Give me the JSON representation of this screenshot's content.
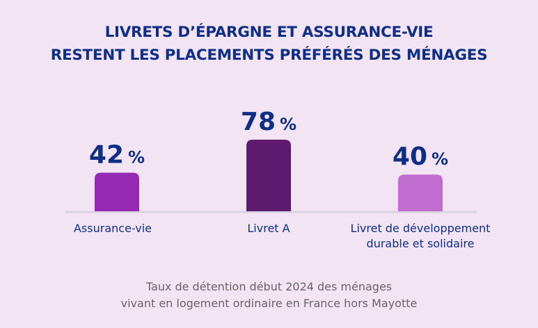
{
  "chart_data": {
    "type": "bar",
    "title_lines": [
      "LIVRETS D’ÉPARGNE ET ASSURANCE-VIE",
      "RESTENT LES PLACEMENTS PRÉFÉRÉS DES MÉNAGES"
    ],
    "categories": [
      "Assurance-vie",
      "Livret A",
      "Livret de développement durable et solidaire"
    ],
    "category_lines": [
      [
        "Assurance-vie"
      ],
      [
        "Livret A"
      ],
      [
        "Livret de développement",
        "durable et solidaire"
      ]
    ],
    "values": [
      42,
      78,
      40
    ],
    "value_labels": [
      "42",
      "78",
      "40"
    ],
    "unit": "%",
    "colors": [
      "#9629b3",
      "#5e1a6e",
      "#c16ccf"
    ],
    "ylim": [
      0,
      100
    ],
    "grid": false,
    "note_lines": [
      "Taux de détention début 2024 des ménages",
      "vivant en logement ordinaire en France hors Mayotte"
    ]
  },
  "colors": {
    "background": "#f3e4f4",
    "text": "#0f2f86",
    "axis": "#d9d2dc"
  }
}
